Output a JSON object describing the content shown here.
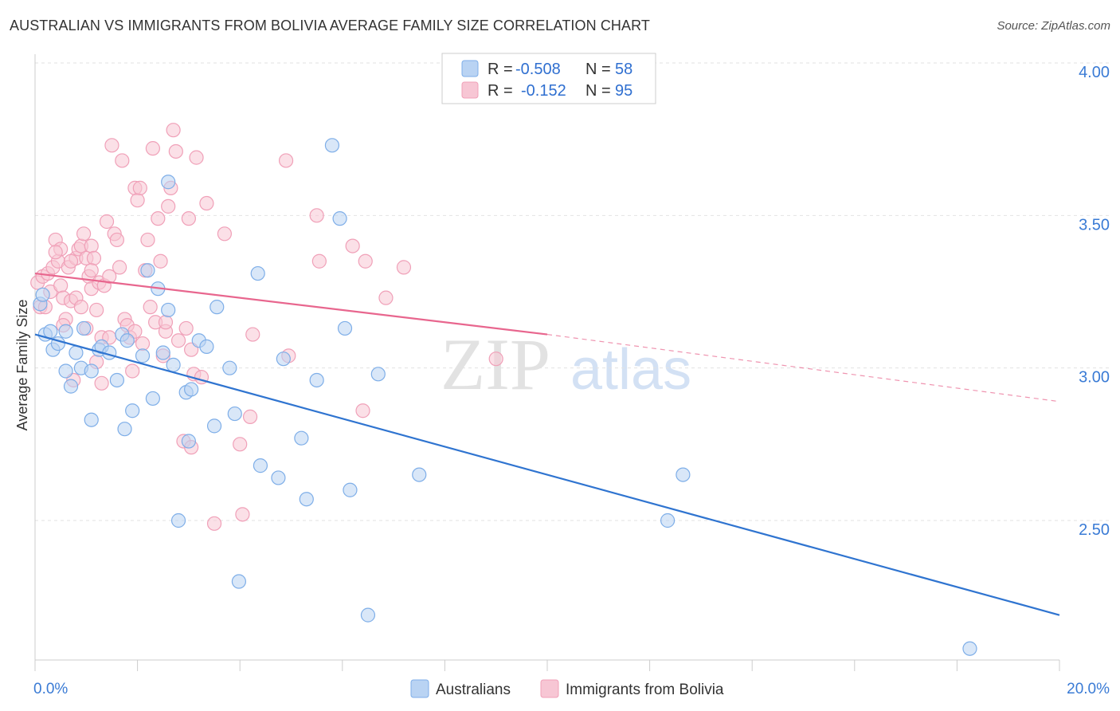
{
  "title": "AUSTRALIAN VS IMMIGRANTS FROM BOLIVIA AVERAGE FAMILY SIZE CORRELATION CHART",
  "source": "Source: ZipAtlas.com",
  "watermark": {
    "zip": "ZIP",
    "atlas": "atlas"
  },
  "legend": {
    "rows": [
      {
        "r_label": "R =",
        "r_value": "-0.508",
        "n_label": "N =",
        "n_value": "58"
      },
      {
        "r_label": "R =",
        "r_value": "-0.152",
        "n_label": "N =",
        "n_value": "95"
      }
    ]
  },
  "bottom_legend": [
    "Australians",
    "Immigrants from Bolivia"
  ],
  "chart_data": {
    "type": "scatter",
    "xlabel": "",
    "ylabel": "Average Family Size",
    "xlim": [
      0,
      20
    ],
    "ylim": [
      2.0,
      4.1
    ],
    "x_tick_labels": [
      {
        "value": 0,
        "label": "0.0%"
      },
      {
        "value": 20,
        "label": "20.0%"
      }
    ],
    "y_tick_labels": [
      {
        "value": 2.5,
        "label": "2.50"
      },
      {
        "value": 3.0,
        "label": "3.00"
      },
      {
        "value": 3.5,
        "label": "3.50"
      },
      {
        "value": 4.0,
        "label": "4.00"
      }
    ],
    "grid": true,
    "legend_position": "top-center",
    "series": [
      {
        "name": "Australians",
        "color": "#7eaee8",
        "fill": "#b9d3f3",
        "trend_color": "#2f74d0",
        "trend": {
          "x0": 0,
          "y0": 3.11,
          "x1": 20,
          "y1": 2.19
        },
        "points": [
          [
            0.1,
            3.21
          ],
          [
            0.15,
            3.24
          ],
          [
            0.2,
            3.11
          ],
          [
            0.3,
            3.12
          ],
          [
            0.35,
            3.06
          ],
          [
            0.45,
            3.08
          ],
          [
            0.6,
            3.12
          ],
          [
            0.6,
            2.99
          ],
          [
            0.7,
            2.94
          ],
          [
            0.8,
            3.05
          ],
          [
            0.9,
            3.0
          ],
          [
            0.95,
            3.13
          ],
          [
            1.1,
            2.99
          ],
          [
            1.1,
            2.83
          ],
          [
            1.25,
            3.06
          ],
          [
            1.3,
            3.07
          ],
          [
            1.45,
            3.05
          ],
          [
            1.6,
            2.96
          ],
          [
            1.7,
            3.11
          ],
          [
            1.75,
            2.8
          ],
          [
            1.8,
            3.09
          ],
          [
            1.9,
            2.86
          ],
          [
            2.1,
            3.04
          ],
          [
            2.2,
            3.32
          ],
          [
            2.3,
            2.9
          ],
          [
            2.4,
            3.26
          ],
          [
            2.5,
            3.05
          ],
          [
            2.6,
            3.61
          ],
          [
            2.6,
            3.19
          ],
          [
            2.7,
            3.01
          ],
          [
            2.8,
            2.5
          ],
          [
            2.95,
            2.92
          ],
          [
            3.0,
            2.76
          ],
          [
            3.05,
            2.93
          ],
          [
            3.2,
            3.09
          ],
          [
            3.35,
            3.07
          ],
          [
            3.5,
            2.81
          ],
          [
            3.55,
            3.2
          ],
          [
            3.8,
            3.0
          ],
          [
            3.9,
            2.85
          ],
          [
            3.98,
            2.3
          ],
          [
            4.35,
            3.31
          ],
          [
            4.4,
            2.68
          ],
          [
            4.75,
            2.64
          ],
          [
            4.85,
            3.03
          ],
          [
            5.2,
            2.77
          ],
          [
            5.3,
            2.57
          ],
          [
            5.5,
            2.96
          ],
          [
            5.8,
            3.73
          ],
          [
            5.95,
            3.49
          ],
          [
            6.05,
            3.13
          ],
          [
            6.15,
            2.6
          ],
          [
            6.5,
            2.19
          ],
          [
            6.7,
            2.98
          ],
          [
            7.5,
            2.65
          ],
          [
            12.35,
            2.5
          ],
          [
            12.65,
            2.65
          ],
          [
            18.25,
            2.08
          ]
        ]
      },
      {
        "name": "Immigrants from Bolivia",
        "color": "#f0a0b8",
        "fill": "#f7c6d4",
        "trend_color": "#e8668e",
        "trend": {
          "x0": 0,
          "y0": 3.31,
          "x1": 10,
          "y1": 3.11
        },
        "trend_extension": {
          "x0": 10,
          "y0": 3.11,
          "x1": 20,
          "y1": 2.89
        },
        "points": [
          [
            0.05,
            3.28
          ],
          [
            0.1,
            3.2
          ],
          [
            0.15,
            3.3
          ],
          [
            0.2,
            3.2
          ],
          [
            0.25,
            3.31
          ],
          [
            0.3,
            3.25
          ],
          [
            0.35,
            3.33
          ],
          [
            0.4,
            3.42
          ],
          [
            0.45,
            3.35
          ],
          [
            0.5,
            3.39
          ],
          [
            0.5,
            3.27
          ],
          [
            0.55,
            3.23
          ],
          [
            0.6,
            3.16
          ],
          [
            0.65,
            3.33
          ],
          [
            0.7,
            3.22
          ],
          [
            0.75,
            2.96
          ],
          [
            0.8,
            3.23
          ],
          [
            0.8,
            3.36
          ],
          [
            0.85,
            3.39
          ],
          [
            0.9,
            3.2
          ],
          [
            0.9,
            3.4
          ],
          [
            0.95,
            3.44
          ],
          [
            1.0,
            3.36
          ],
          [
            1.0,
            3.13
          ],
          [
            1.05,
            3.3
          ],
          [
            1.1,
            3.4
          ],
          [
            1.1,
            3.26
          ],
          [
            1.15,
            3.36
          ],
          [
            1.2,
            3.19
          ],
          [
            1.2,
            3.02
          ],
          [
            1.25,
            3.28
          ],
          [
            1.3,
            2.95
          ],
          [
            1.3,
            3.1
          ],
          [
            1.35,
            3.27
          ],
          [
            1.4,
            3.48
          ],
          [
            1.45,
            3.3
          ],
          [
            1.5,
            3.73
          ],
          [
            1.55,
            3.44
          ],
          [
            1.6,
            3.42
          ],
          [
            1.65,
            3.33
          ],
          [
            1.7,
            3.68
          ],
          [
            1.75,
            3.16
          ],
          [
            1.8,
            3.14
          ],
          [
            1.85,
            3.1
          ],
          [
            1.9,
            2.99
          ],
          [
            1.95,
            3.59
          ],
          [
            2.0,
            3.55
          ],
          [
            2.05,
            3.59
          ],
          [
            2.1,
            3.08
          ],
          [
            2.15,
            3.32
          ],
          [
            2.2,
            3.42
          ],
          [
            2.25,
            3.2
          ],
          [
            2.3,
            3.72
          ],
          [
            2.35,
            3.15
          ],
          [
            2.4,
            3.49
          ],
          [
            2.45,
            3.35
          ],
          [
            2.5,
            3.04
          ],
          [
            2.55,
            3.12
          ],
          [
            2.6,
            3.53
          ],
          [
            2.65,
            3.59
          ],
          [
            2.7,
            3.78
          ],
          [
            2.75,
            3.71
          ],
          [
            2.8,
            3.09
          ],
          [
            2.9,
            2.76
          ],
          [
            2.95,
            3.13
          ],
          [
            3.0,
            3.49
          ],
          [
            3.05,
            2.74
          ],
          [
            3.1,
            2.98
          ],
          [
            3.15,
            3.69
          ],
          [
            3.25,
            2.97
          ],
          [
            3.35,
            3.54
          ],
          [
            3.5,
            2.49
          ],
          [
            3.7,
            3.44
          ],
          [
            4.0,
            2.75
          ],
          [
            4.05,
            2.52
          ],
          [
            4.2,
            2.84
          ],
          [
            4.25,
            3.11
          ],
          [
            4.9,
            3.68
          ],
          [
            4.95,
            3.04
          ],
          [
            5.5,
            3.5
          ],
          [
            5.55,
            3.35
          ],
          [
            6.2,
            3.4
          ],
          [
            6.4,
            2.86
          ],
          [
            6.45,
            3.35
          ],
          [
            6.85,
            3.23
          ],
          [
            7.2,
            3.33
          ],
          [
            9.0,
            3.03
          ],
          [
            1.45,
            3.1
          ],
          [
            0.4,
            3.38
          ],
          [
            1.1,
            3.32
          ],
          [
            2.55,
            3.15
          ],
          [
            0.7,
            3.35
          ],
          [
            1.95,
            3.12
          ],
          [
            0.55,
            3.14
          ],
          [
            3.05,
            3.06
          ]
        ]
      }
    ]
  }
}
